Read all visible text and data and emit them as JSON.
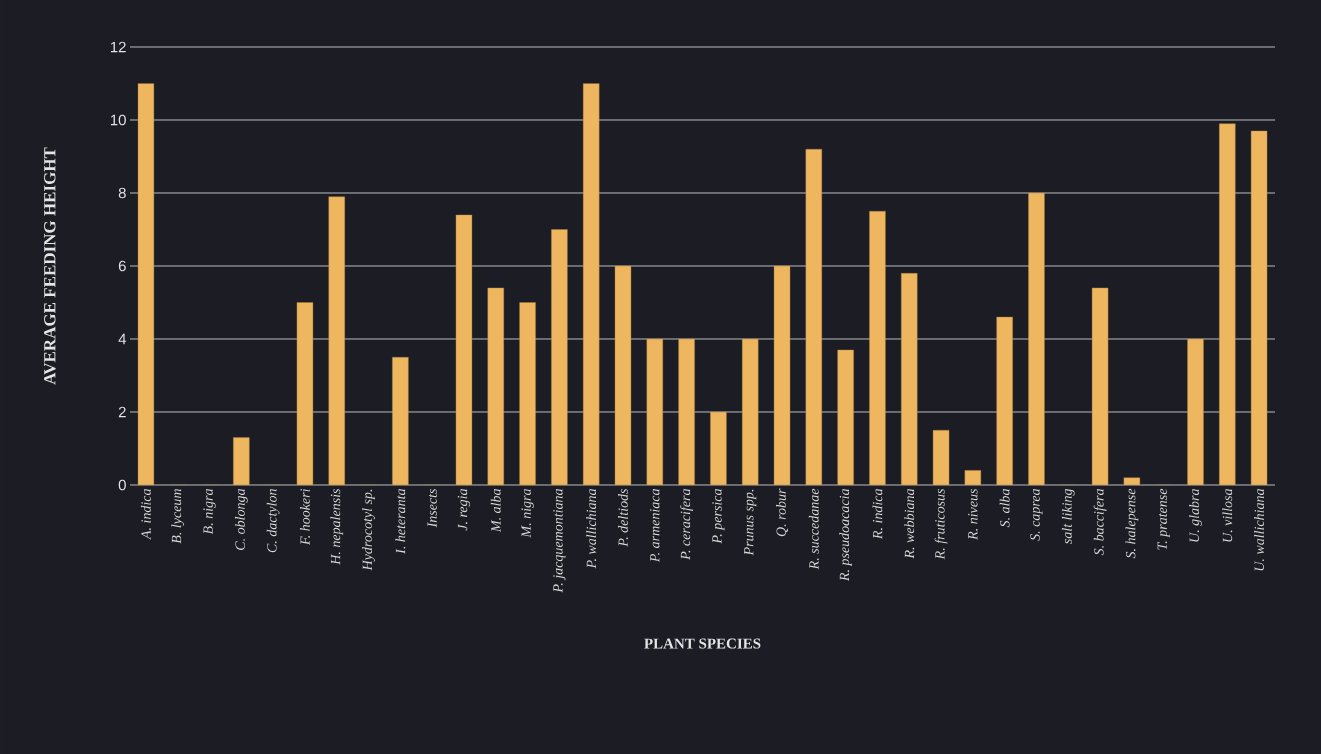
{
  "chart_data": {
    "type": "bar",
    "xlabel": "PLANT SPECIES",
    "ylabel": "AVERAGE FEEDING HEIGHT",
    "categories": [
      "A. indica",
      "B. lyceum",
      "B. nigra",
      "C. oblonga",
      "C. dactylon",
      "F. hookeri",
      "H. nepalensis",
      "Hydrocotyl sp.",
      "I. heteranta",
      "Insects",
      "J. regia",
      "M. alba",
      "M. nigra",
      "P. jacquemontiana",
      "P. wallichiana",
      "P. deltiods",
      "P. armeniaca",
      "P. ceracifera",
      "P. persica",
      "Prunus spp.",
      "Q. robur",
      "R. succedanae",
      "R. pseudoacacia",
      "R. indica",
      "R. webbiana",
      "R. fruticosus",
      "R. niveus",
      "S. alba",
      "S. caprea",
      "salt liking",
      "S. baccifera",
      "S. halepense",
      "T. pratense",
      "U. glabra",
      "U. villosa",
      "U. wallichiana"
    ],
    "values": [
      11,
      0,
      0,
      1.3,
      0,
      5,
      7.9,
      0,
      3.5,
      0,
      7.4,
      5.4,
      5,
      7,
      11,
      6,
      4,
      4,
      2,
      4,
      6,
      9.2,
      3.7,
      7.5,
      5.8,
      1.5,
      0.4,
      4.6,
      8,
      0,
      5.4,
      0.2,
      0,
      4,
      9.9,
      9.7
    ],
    "color": "#eeb65e",
    "ylim": [
      0,
      12
    ],
    "yticks": [
      0,
      2,
      4,
      6,
      8,
      10,
      12
    ],
    "grid": "y"
  }
}
